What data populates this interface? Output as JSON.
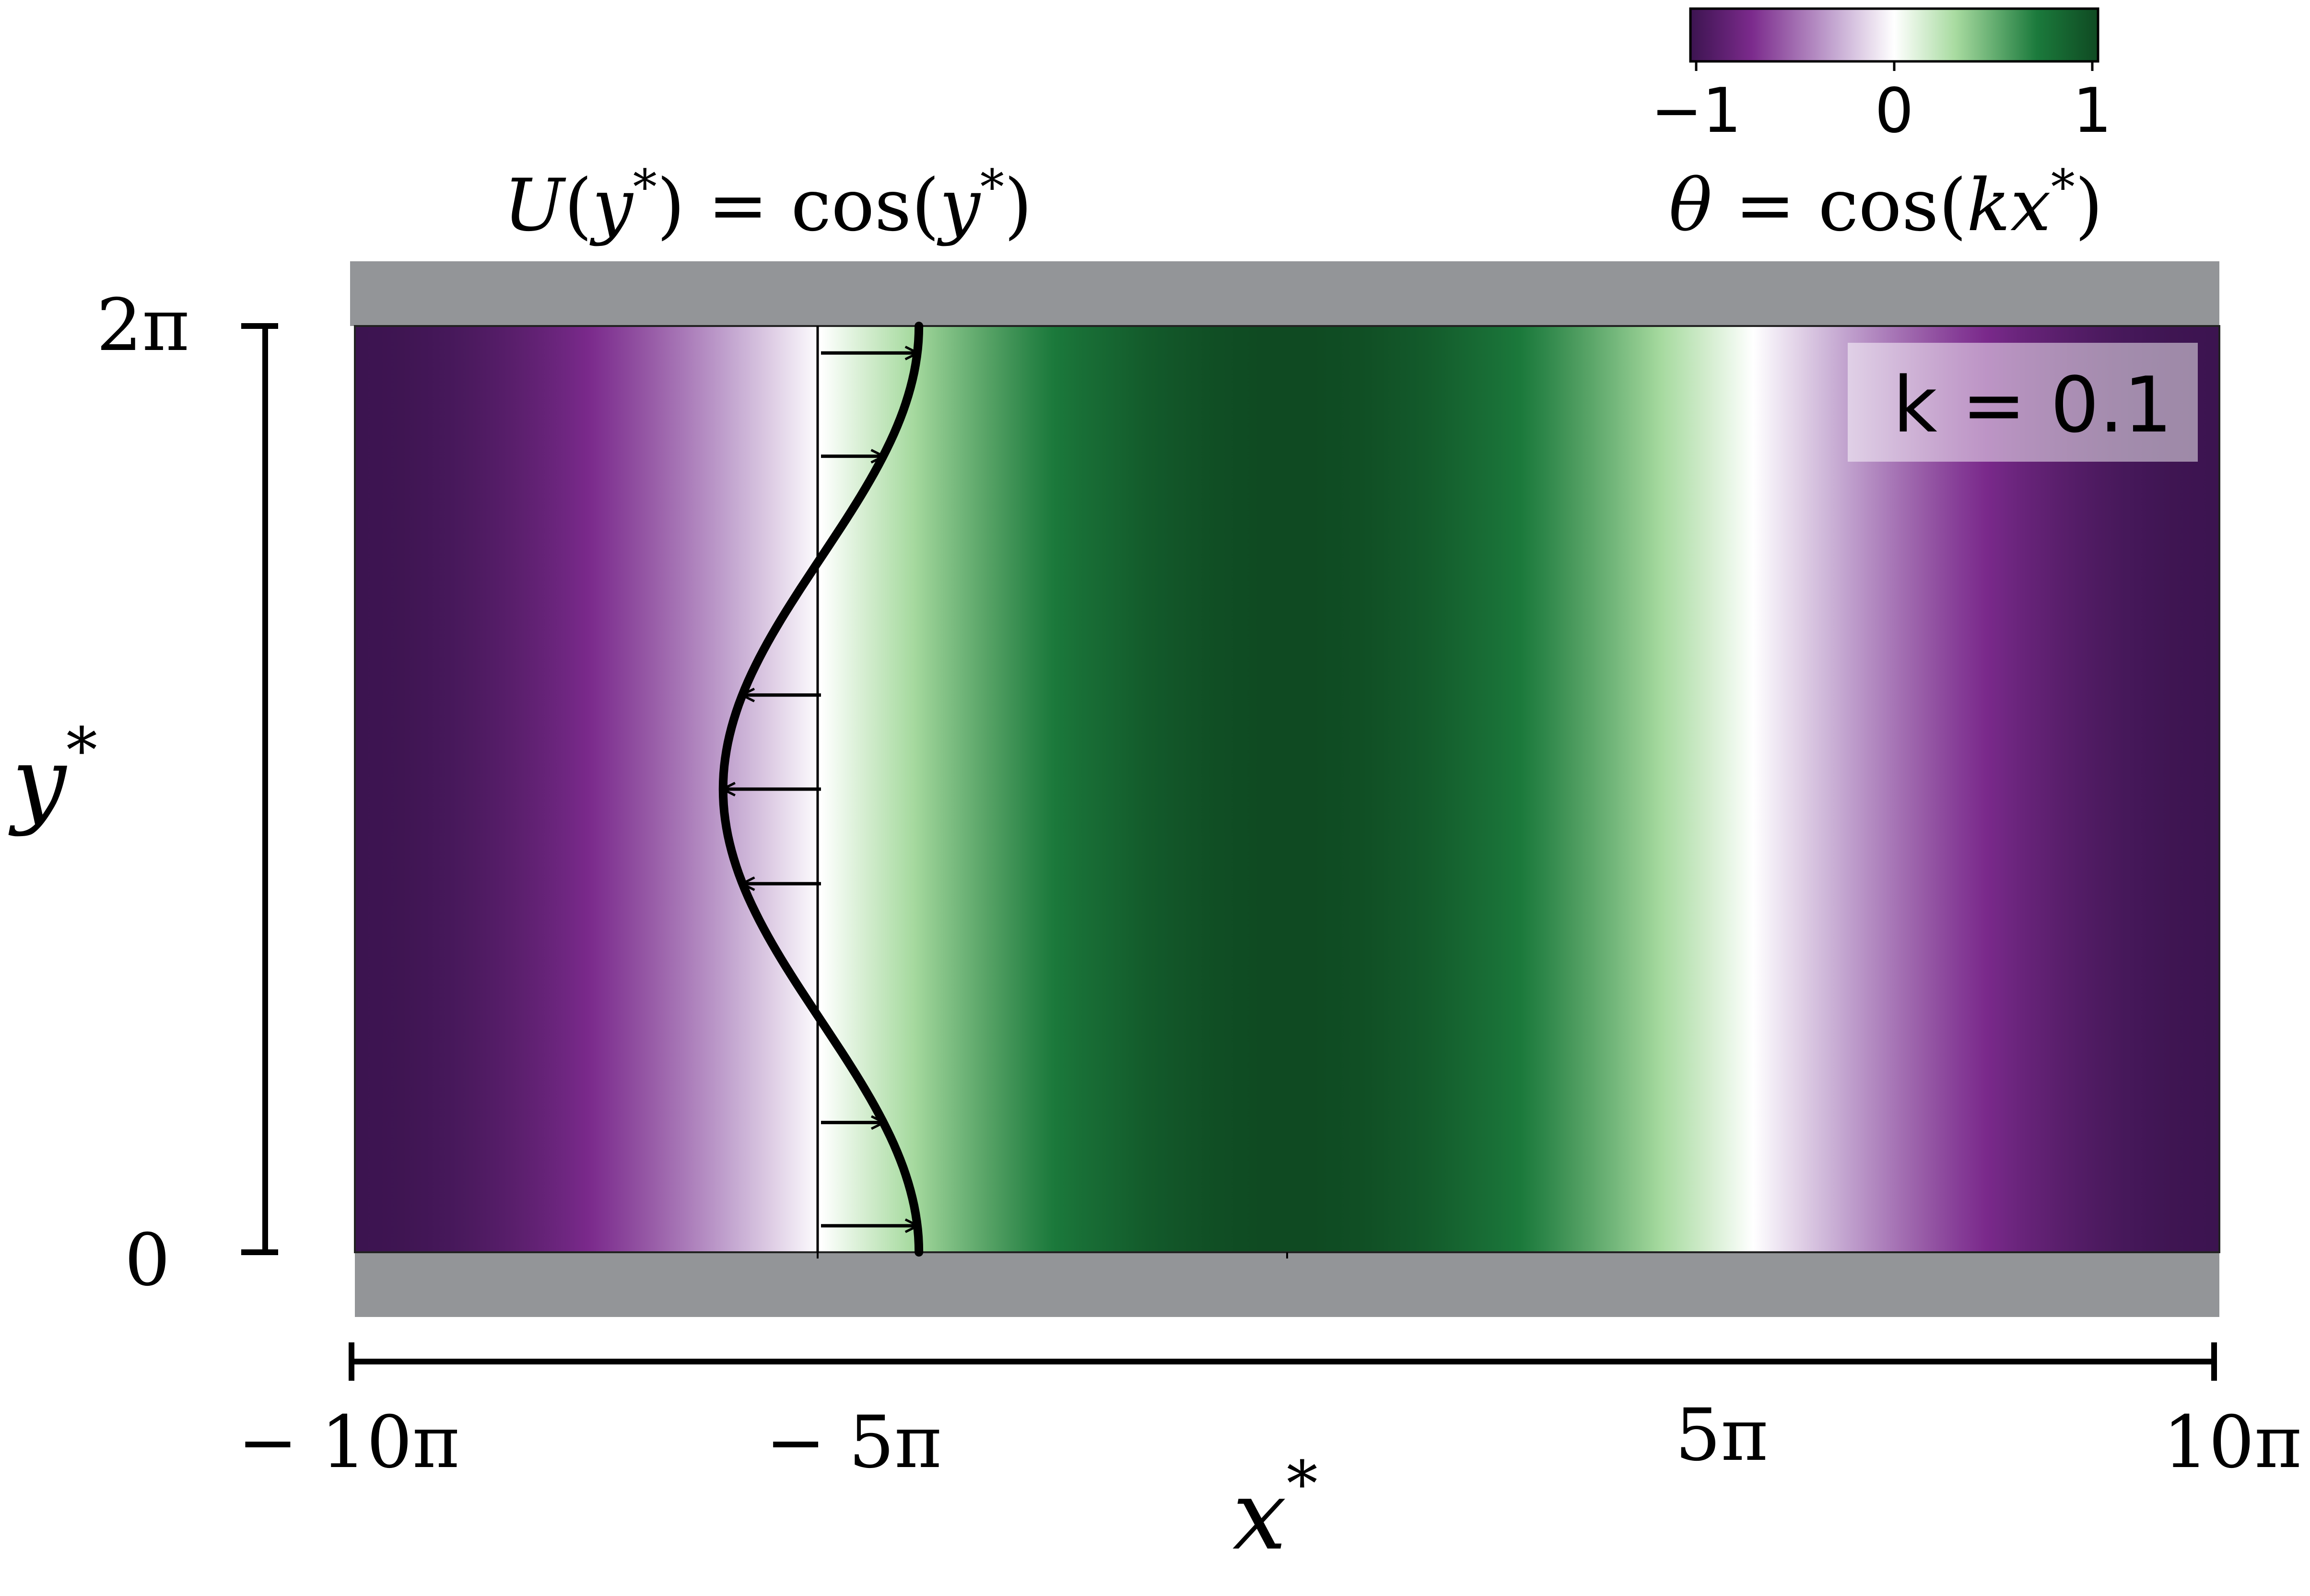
{
  "profile_title": {
    "U": "U",
    "open_paren": "(",
    "y": "y",
    "star": "*",
    "close_paren": ")",
    "equals": " = ",
    "cos": "cos",
    "open_paren2": "(",
    "y2": "y",
    "star2": "*",
    "close_paren2": ")"
  },
  "theta_label": {
    "theta": "θ",
    "equals": " = ",
    "cos": "cos",
    "open_paren": "(",
    "k": "k",
    "x": "x",
    "star": "*",
    "close_paren": ")"
  },
  "k_label": "k = 0.1",
  "colorbar": {
    "ticks": [
      "−1",
      "0",
      "1"
    ],
    "tick_values": [
      -1,
      0,
      1
    ],
    "colors": {
      "min_dark": "#3c1450",
      "min": "#7b2a8c",
      "mid_low": "#c3a5d0",
      "zero": "#ffffff",
      "mid_high": "#a8dba0",
      "max": "#1b7a3c",
      "max_dark": "#0f4a22"
    }
  },
  "y_axis": {
    "label": "y",
    "label_star": "*",
    "ticks": [
      "2π",
      "0"
    ],
    "range": [
      0,
      6.2832
    ]
  },
  "x_axis": {
    "label": "x",
    "label_star": "*",
    "ticks": [
      "− 10π",
      "− 5π",
      "5π",
      "10π"
    ],
    "tick_values": [
      -31.416,
      -15.708,
      15.708,
      31.416
    ],
    "range": [
      -31.416,
      31.416
    ]
  },
  "field": {
    "k": 0.1,
    "function": "cos(k x*)"
  },
  "profile": {
    "function": "cos(y*)",
    "base_x": -15.708,
    "amplitude_x": 3.3,
    "arrow_y_values": [
      0.18,
      0.88,
      2.5,
      3.1416,
      3.78,
      5.4,
      6.1
    ]
  },
  "colors": {
    "wall": "#939598",
    "axis": "#000000"
  }
}
